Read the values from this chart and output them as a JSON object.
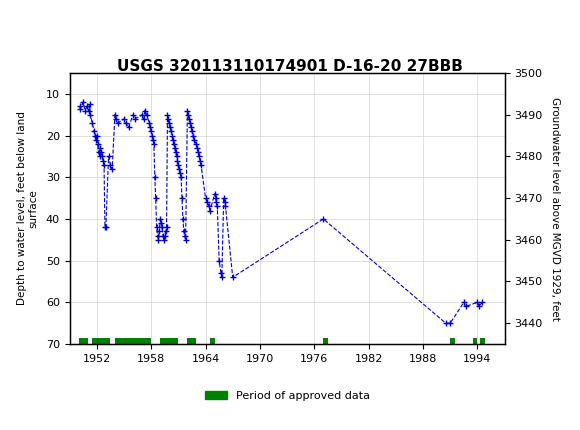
{
  "title": "USGS 320113110174901 D-16-20 27BBB",
  "ylabel_left": "Depth to water level, feet below land\nsurface",
  "ylabel_right": "Groundwater level above MGVD 1929, feet",
  "xlim": [
    1949,
    1997
  ],
  "ylim_left": [
    70,
    5
  ],
  "ylim_right": [
    3435,
    3500
  ],
  "xticks": [
    1952,
    1958,
    1964,
    1970,
    1976,
    1982,
    1988,
    1994
  ],
  "yticks_left": [
    10,
    20,
    30,
    40,
    50,
    60,
    70
  ],
  "yticks_right": [
    3440,
    3450,
    3460,
    3470,
    3480,
    3490,
    3500
  ],
  "header_color": "#1a6644",
  "data_color": "#0000cc",
  "approved_color": "#008000",
  "background_color": "#ffffff",
  "plot_bg_color": "#ffffff",
  "data_points": [
    [
      1950.1,
      13
    ],
    [
      1950.2,
      13.5
    ],
    [
      1950.5,
      12
    ],
    [
      1950.7,
      14
    ],
    [
      1950.9,
      13
    ],
    [
      1951.1,
      14
    ],
    [
      1951.2,
      12.5
    ],
    [
      1951.3,
      15
    ],
    [
      1951.5,
      17
    ],
    [
      1951.7,
      19
    ],
    [
      1951.8,
      20
    ],
    [
      1951.9,
      21
    ],
    [
      1952.0,
      20
    ],
    [
      1952.1,
      22
    ],
    [
      1952.2,
      24
    ],
    [
      1952.3,
      25
    ],
    [
      1952.4,
      23
    ],
    [
      1952.5,
      24
    ],
    [
      1952.6,
      25
    ],
    [
      1952.7,
      26
    ],
    [
      1952.8,
      27
    ],
    [
      1952.9,
      42
    ],
    [
      1953.0,
      42
    ],
    [
      1953.3,
      25
    ],
    [
      1953.5,
      27
    ],
    [
      1953.7,
      28
    ],
    [
      1954.0,
      15
    ],
    [
      1954.1,
      16
    ],
    [
      1954.3,
      17
    ],
    [
      1955.0,
      16
    ],
    [
      1955.2,
      17
    ],
    [
      1955.5,
      18
    ],
    [
      1956.0,
      15
    ],
    [
      1956.2,
      16
    ],
    [
      1957.0,
      15
    ],
    [
      1957.2,
      16
    ],
    [
      1957.3,
      14
    ],
    [
      1957.5,
      15
    ],
    [
      1957.8,
      17
    ],
    [
      1957.9,
      18
    ],
    [
      1958.0,
      19
    ],
    [
      1958.1,
      20
    ],
    [
      1958.2,
      21
    ],
    [
      1958.3,
      22
    ],
    [
      1958.4,
      30
    ],
    [
      1958.5,
      35
    ],
    [
      1958.6,
      42
    ],
    [
      1958.7,
      44
    ],
    [
      1958.8,
      45
    ],
    [
      1958.9,
      43
    ],
    [
      1959.0,
      40
    ],
    [
      1959.1,
      41
    ],
    [
      1959.2,
      42
    ],
    [
      1959.3,
      44
    ],
    [
      1959.4,
      45
    ],
    [
      1959.5,
      44
    ],
    [
      1959.6,
      43
    ],
    [
      1959.7,
      42
    ],
    [
      1959.8,
      15
    ],
    [
      1959.9,
      16
    ],
    [
      1960.0,
      17
    ],
    [
      1960.1,
      18
    ],
    [
      1960.2,
      19
    ],
    [
      1960.3,
      20
    ],
    [
      1960.4,
      21
    ],
    [
      1960.5,
      22
    ],
    [
      1960.6,
      23
    ],
    [
      1960.7,
      24
    ],
    [
      1960.8,
      25
    ],
    [
      1960.9,
      26
    ],
    [
      1961.0,
      27
    ],
    [
      1961.1,
      28
    ],
    [
      1961.2,
      29
    ],
    [
      1961.3,
      30
    ],
    [
      1961.4,
      35
    ],
    [
      1961.5,
      40
    ],
    [
      1961.6,
      43
    ],
    [
      1961.7,
      44
    ],
    [
      1961.8,
      45
    ],
    [
      1962.0,
      14
    ],
    [
      1962.1,
      15
    ],
    [
      1962.2,
      16
    ],
    [
      1962.3,
      17
    ],
    [
      1962.4,
      18
    ],
    [
      1962.5,
      19
    ],
    [
      1962.6,
      20
    ],
    [
      1962.7,
      21
    ],
    [
      1963.0,
      22
    ],
    [
      1963.1,
      23
    ],
    [
      1963.2,
      24
    ],
    [
      1963.3,
      25
    ],
    [
      1963.4,
      26
    ],
    [
      1963.5,
      27
    ],
    [
      1964.0,
      35
    ],
    [
      1964.2,
      36
    ],
    [
      1964.4,
      37
    ],
    [
      1964.5,
      38
    ],
    [
      1965.0,
      34
    ],
    [
      1965.1,
      35
    ],
    [
      1965.2,
      36
    ],
    [
      1965.3,
      37
    ],
    [
      1965.5,
      50
    ],
    [
      1965.7,
      53
    ],
    [
      1965.8,
      54
    ],
    [
      1966.0,
      35
    ],
    [
      1966.1,
      36
    ],
    [
      1966.2,
      37
    ],
    [
      1967.0,
      54
    ],
    [
      1977.0,
      40
    ],
    [
      1991.0,
      65
    ],
    [
      1992.5,
      60
    ],
    [
      1992.7,
      61
    ],
    [
      1994.0,
      60
    ],
    [
      1994.2,
      61
    ],
    [
      1994.5,
      60
    ],
    [
      1990.5,
      65
    ]
  ],
  "approved_segments": [
    [
      1950.0,
      1951.0
    ],
    [
      1951.5,
      1953.5
    ],
    [
      1954.0,
      1958.0
    ],
    [
      1959.0,
      1961.0
    ],
    [
      1962.0,
      1963.0
    ],
    [
      1964.5,
      1965.0
    ],
    [
      1977.0,
      1977.5
    ],
    [
      1991.0,
      1991.5
    ],
    [
      1993.5,
      1994.0
    ],
    [
      1994.3,
      1994.8
    ]
  ],
  "approved_y": 70,
  "approved_bar_height": 1.5
}
